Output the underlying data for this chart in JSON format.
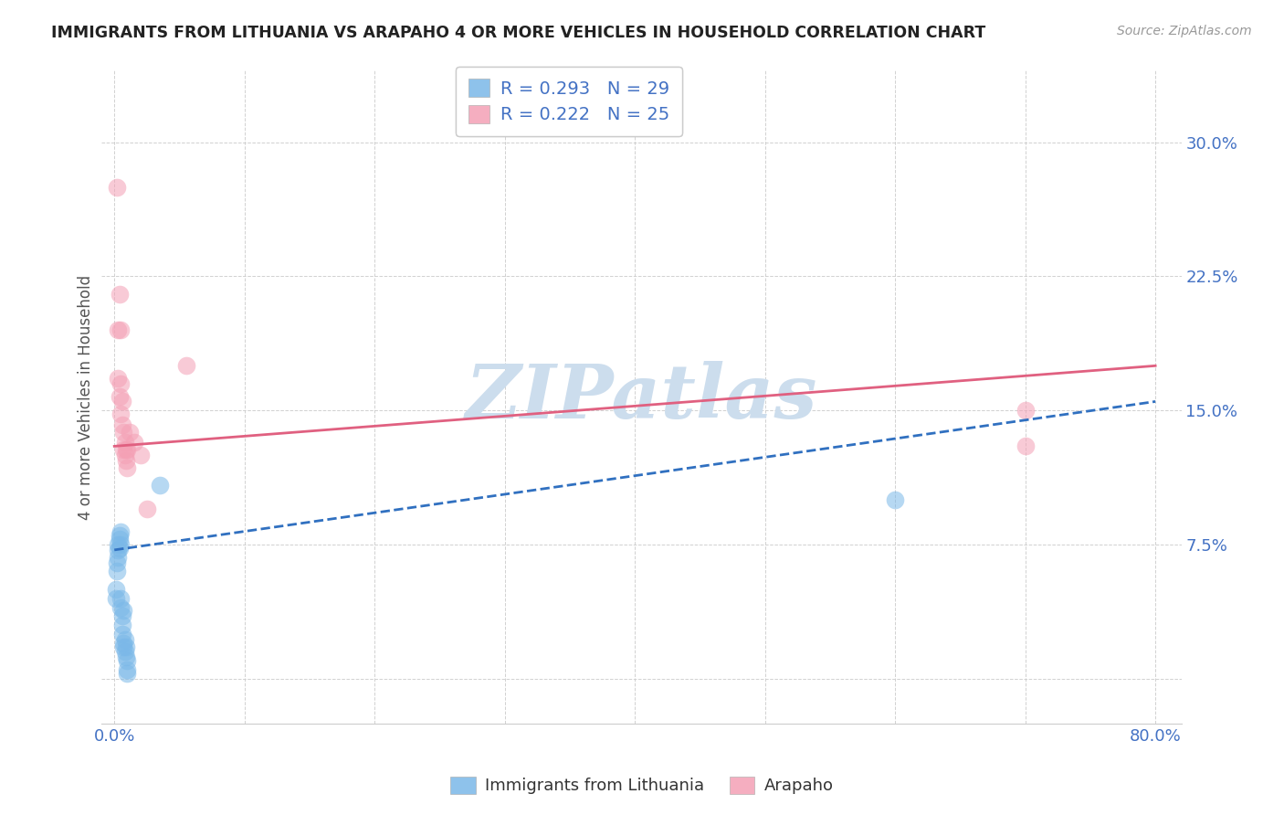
{
  "title": "IMMIGRANTS FROM LITHUANIA VS ARAPAHO 4 OR MORE VEHICLES IN HOUSEHOLD CORRELATION CHART",
  "source": "Source: ZipAtlas.com",
  "ylabel": "4 or more Vehicles in Household",
  "ytick_values": [
    0.0,
    0.075,
    0.15,
    0.225,
    0.3
  ],
  "ytick_labels": [
    "",
    "7.5%",
    "15.0%",
    "22.5%",
    "30.0%"
  ],
  "xlim": [
    -0.01,
    0.82
  ],
  "ylim": [
    -0.025,
    0.34
  ],
  "legend_label1": "R = 0.293   N = 29",
  "legend_label2": "R = 0.222   N = 25",
  "color_blue": "#7ab8e8",
  "color_pink": "#f4a0b5",
  "line_color_blue": "#3070c0",
  "line_color_pink": "#e06080",
  "watermark": "ZIPatlas",
  "watermark_color": "#ccdded",
  "background_color": "#ffffff",
  "scatter_blue": [
    [
      0.001,
      0.05
    ],
    [
      0.001,
      0.045
    ],
    [
      0.002,
      0.065
    ],
    [
      0.002,
      0.06
    ],
    [
      0.003,
      0.075
    ],
    [
      0.003,
      0.072
    ],
    [
      0.003,
      0.068
    ],
    [
      0.004,
      0.08
    ],
    [
      0.004,
      0.078
    ],
    [
      0.004,
      0.073
    ],
    [
      0.005,
      0.082
    ],
    [
      0.005,
      0.075
    ],
    [
      0.005,
      0.045
    ],
    [
      0.005,
      0.04
    ],
    [
      0.006,
      0.035
    ],
    [
      0.006,
      0.03
    ],
    [
      0.006,
      0.025
    ],
    [
      0.007,
      0.038
    ],
    [
      0.007,
      0.02
    ],
    [
      0.007,
      0.018
    ],
    [
      0.008,
      0.022
    ],
    [
      0.008,
      0.015
    ],
    [
      0.009,
      0.018
    ],
    [
      0.009,
      0.012
    ],
    [
      0.01,
      0.01
    ],
    [
      0.01,
      0.005
    ],
    [
      0.01,
      0.003
    ],
    [
      0.035,
      0.108
    ],
    [
      0.6,
      0.1
    ]
  ],
  "scatter_pink": [
    [
      0.002,
      0.275
    ],
    [
      0.004,
      0.215
    ],
    [
      0.003,
      0.195
    ],
    [
      0.005,
      0.195
    ],
    [
      0.003,
      0.168
    ],
    [
      0.005,
      0.165
    ],
    [
      0.004,
      0.158
    ],
    [
      0.006,
      0.155
    ],
    [
      0.005,
      0.148
    ],
    [
      0.006,
      0.142
    ],
    [
      0.007,
      0.138
    ],
    [
      0.007,
      0.128
    ],
    [
      0.008,
      0.132
    ],
    [
      0.008,
      0.125
    ],
    [
      0.009,
      0.128
    ],
    [
      0.009,
      0.122
    ],
    [
      0.01,
      0.128
    ],
    [
      0.01,
      0.118
    ],
    [
      0.012,
      0.138
    ],
    [
      0.015,
      0.132
    ],
    [
      0.02,
      0.125
    ],
    [
      0.025,
      0.095
    ],
    [
      0.055,
      0.175
    ],
    [
      0.7,
      0.15
    ],
    [
      0.7,
      0.13
    ]
  ],
  "blue_line": [
    0.0,
    0.072,
    0.8,
    0.155
  ],
  "pink_line": [
    0.0,
    0.13,
    0.8,
    0.175
  ],
  "xtick_show": [
    0.0,
    0.8
  ],
  "xtick_labels_show": [
    "0.0%",
    "80.0%"
  ]
}
